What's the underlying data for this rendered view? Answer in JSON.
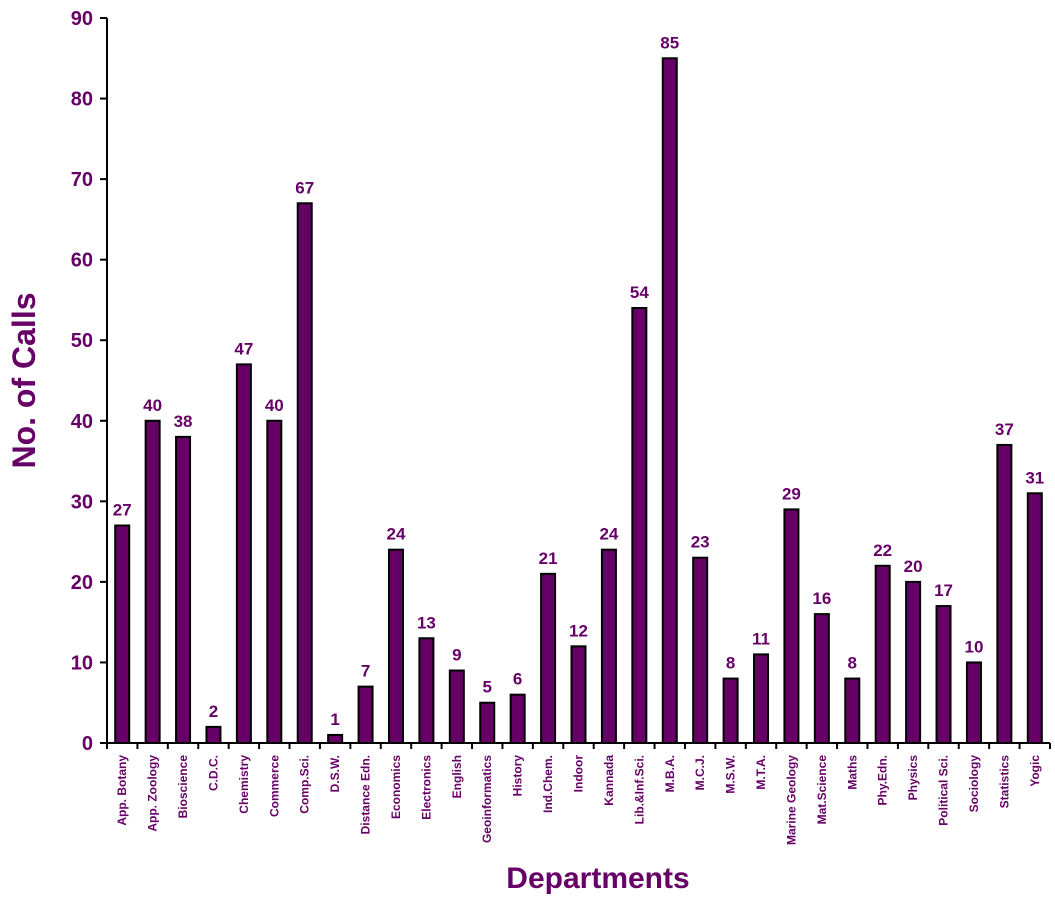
{
  "chart_data": {
    "type": "bar",
    "title": "",
    "xlabel": "Departments",
    "ylabel": "No. of Calls",
    "ylim": [
      0,
      90
    ],
    "yticks": [
      0,
      10,
      20,
      30,
      40,
      50,
      60,
      70,
      80,
      90
    ],
    "grid": false,
    "legend": "none",
    "categories": [
      "App. Botany",
      "App. Zoology",
      "Bioscience",
      "C.D.C.",
      "Chemistry",
      "Commerce",
      "Comp.Sci.",
      "D.S.W.",
      "Distance Edn.",
      "Economics",
      "Electronics",
      "English",
      "Geoinformatics",
      "History",
      "Ind.Chem.",
      "Indoor",
      "Kannada",
      "Lib.&Inf.Sci.",
      "M.B.A.",
      "M.C.J.",
      "M.S.W.",
      "M.T.A.",
      "Marine Geology",
      "Mat.Science",
      "Maths",
      "Phy.Edn.",
      "Physics",
      "Political Sci.",
      "Sociology",
      "Statistics",
      "Yogic"
    ],
    "values": [
      27,
      40,
      38,
      2,
      47,
      40,
      67,
      1,
      7,
      24,
      13,
      9,
      5,
      6,
      21,
      12,
      24,
      54,
      85,
      23,
      8,
      11,
      29,
      16,
      8,
      22,
      20,
      17,
      10,
      37,
      31
    ],
    "colors": {
      "bar_fill": "#660066",
      "bar_stroke": "#000000",
      "text": "#660066",
      "axis": "#000000"
    }
  }
}
